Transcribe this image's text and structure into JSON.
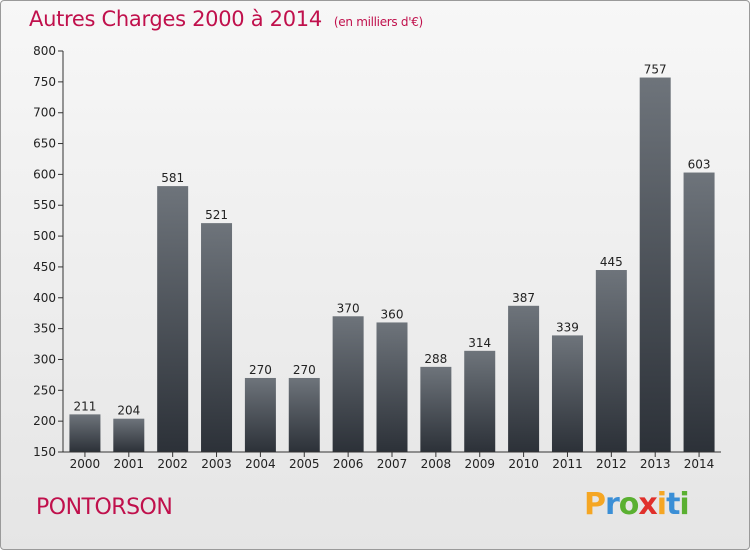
{
  "header": {
    "title": "Autres Charges 2000 à 2014",
    "unit": "(en milliers d'€)"
  },
  "footer": {
    "city": "PONTORSON"
  },
  "logo": {
    "letters": [
      "P",
      "r",
      "o",
      "x",
      "i",
      "t",
      "i"
    ],
    "colors": [
      "#f5a623",
      "#3b8fd6",
      "#5ab031",
      "#e0302b",
      "#f5a623",
      "#3b8fd6",
      "#5ab031"
    ]
  },
  "chart_data": {
    "type": "bar",
    "categories": [
      "2000",
      "2001",
      "2002",
      "2003",
      "2004",
      "2005",
      "2006",
      "2007",
      "2008",
      "2009",
      "2010",
      "2011",
      "2012",
      "2013",
      "2014"
    ],
    "values": [
      211,
      204,
      581,
      521,
      270,
      270,
      370,
      360,
      288,
      314,
      387,
      339,
      445,
      757,
      603
    ],
    "data_labels": [
      "211",
      "204",
      "581",
      "521",
      "270",
      "270",
      "370",
      "360",
      "288",
      "314",
      "387",
      "339",
      "445",
      "757",
      "603"
    ],
    "title": "Autres Charges 2000 à 2014",
    "xlabel": "",
    "ylabel": "",
    "ylim": [
      150,
      800
    ],
    "yticks": [
      150,
      200,
      250,
      300,
      350,
      400,
      450,
      500,
      550,
      600,
      650,
      700,
      750,
      800
    ],
    "grid": false,
    "colors": {
      "bar_top": "#6e747b",
      "bar_bottom": "#2c3138",
      "text": "#222222",
      "axis": "#333333"
    }
  }
}
